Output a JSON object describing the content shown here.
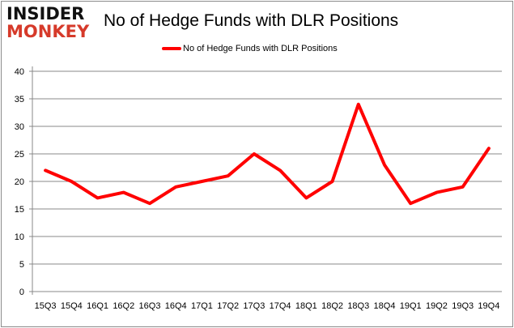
{
  "logo": {
    "line1": "INSIDER",
    "line2": "MONKEY"
  },
  "chart_data": {
    "type": "line",
    "title": "No of Hedge Funds with DLR Positions",
    "xlabel": "",
    "ylabel": "",
    "categories": [
      "15Q3",
      "15Q4",
      "16Q1",
      "16Q2",
      "16Q3",
      "16Q4",
      "17Q1",
      "17Q2",
      "17Q3",
      "17Q4",
      "18Q1",
      "18Q2",
      "18Q3",
      "18Q4",
      "19Q1",
      "19Q2",
      "19Q3",
      "19Q4"
    ],
    "series": [
      {
        "name": "No of Hedge Funds with DLR Positions",
        "color": "#ff0000",
        "values": [
          22,
          20,
          17,
          18,
          16,
          19,
          20,
          21,
          25,
          22,
          17,
          20,
          34,
          23,
          16,
          18,
          19,
          26
        ]
      }
    ],
    "ylim": [
      0,
      40
    ],
    "yticks": [
      0,
      5,
      10,
      15,
      20,
      25,
      30,
      35,
      40
    ],
    "grid": true,
    "legend_position": "top"
  }
}
